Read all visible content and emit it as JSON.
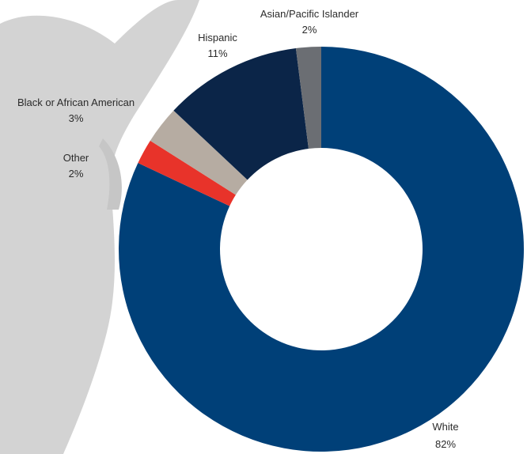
{
  "chart_data": {
    "type": "pie",
    "donut": true,
    "categories": [
      "White",
      "Hispanic",
      "Asian/Pacific Islander",
      "Black or African American",
      "Other"
    ],
    "values": [
      82,
      11,
      2,
      3,
      2
    ],
    "value_labels": [
      "82%",
      "11%",
      "2%",
      "3%",
      "2%"
    ],
    "colors": {
      "White": "#004078",
      "Hispanic": "#0b2548",
      "Asian/Pacific Islander": "#6b6e73",
      "Black or African American": "#b6aca2",
      "Other": "#e8332a"
    },
    "slice_order_clockwise_from_top": [
      "White",
      "Other",
      "Black or African American",
      "Hispanic",
      "Asian/Pacific Islander"
    ],
    "background_image": "grey silhouette of a person with raised arm",
    "legend": "none",
    "title": ""
  }
}
